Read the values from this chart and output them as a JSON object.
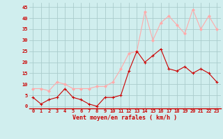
{
  "x": [
    0,
    1,
    2,
    3,
    4,
    5,
    6,
    7,
    8,
    9,
    10,
    11,
    12,
    13,
    14,
    15,
    16,
    17,
    18,
    19,
    20,
    21,
    22,
    23
  ],
  "y_moyen": [
    4,
    1,
    3,
    4,
    8,
    4,
    3,
    1,
    0,
    4,
    4,
    5,
    16,
    25,
    20,
    23,
    26,
    17,
    16,
    18,
    15,
    17,
    15,
    11
  ],
  "y_rafales": [
    8,
    8,
    7,
    11,
    10,
    8,
    8,
    8,
    9,
    9,
    11,
    17,
    24,
    25,
    43,
    30,
    38,
    41,
    37,
    33,
    44,
    35,
    41,
    35
  ],
  "color_moyen": "#cc0000",
  "color_rafales": "#ffaaaa",
  "bg_color": "#d0eeee",
  "grid_color": "#aacccc",
  "xlabel": "Vent moyen/en rafales ( km/h )",
  "yticks": [
    0,
    5,
    10,
    15,
    20,
    25,
    30,
    35,
    40,
    45
  ],
  "ylim": [
    -1,
    47
  ],
  "xlim": [
    -0.5,
    23.5
  ],
  "xlabel_fontsize": 6.0,
  "tick_fontsize": 5.0
}
